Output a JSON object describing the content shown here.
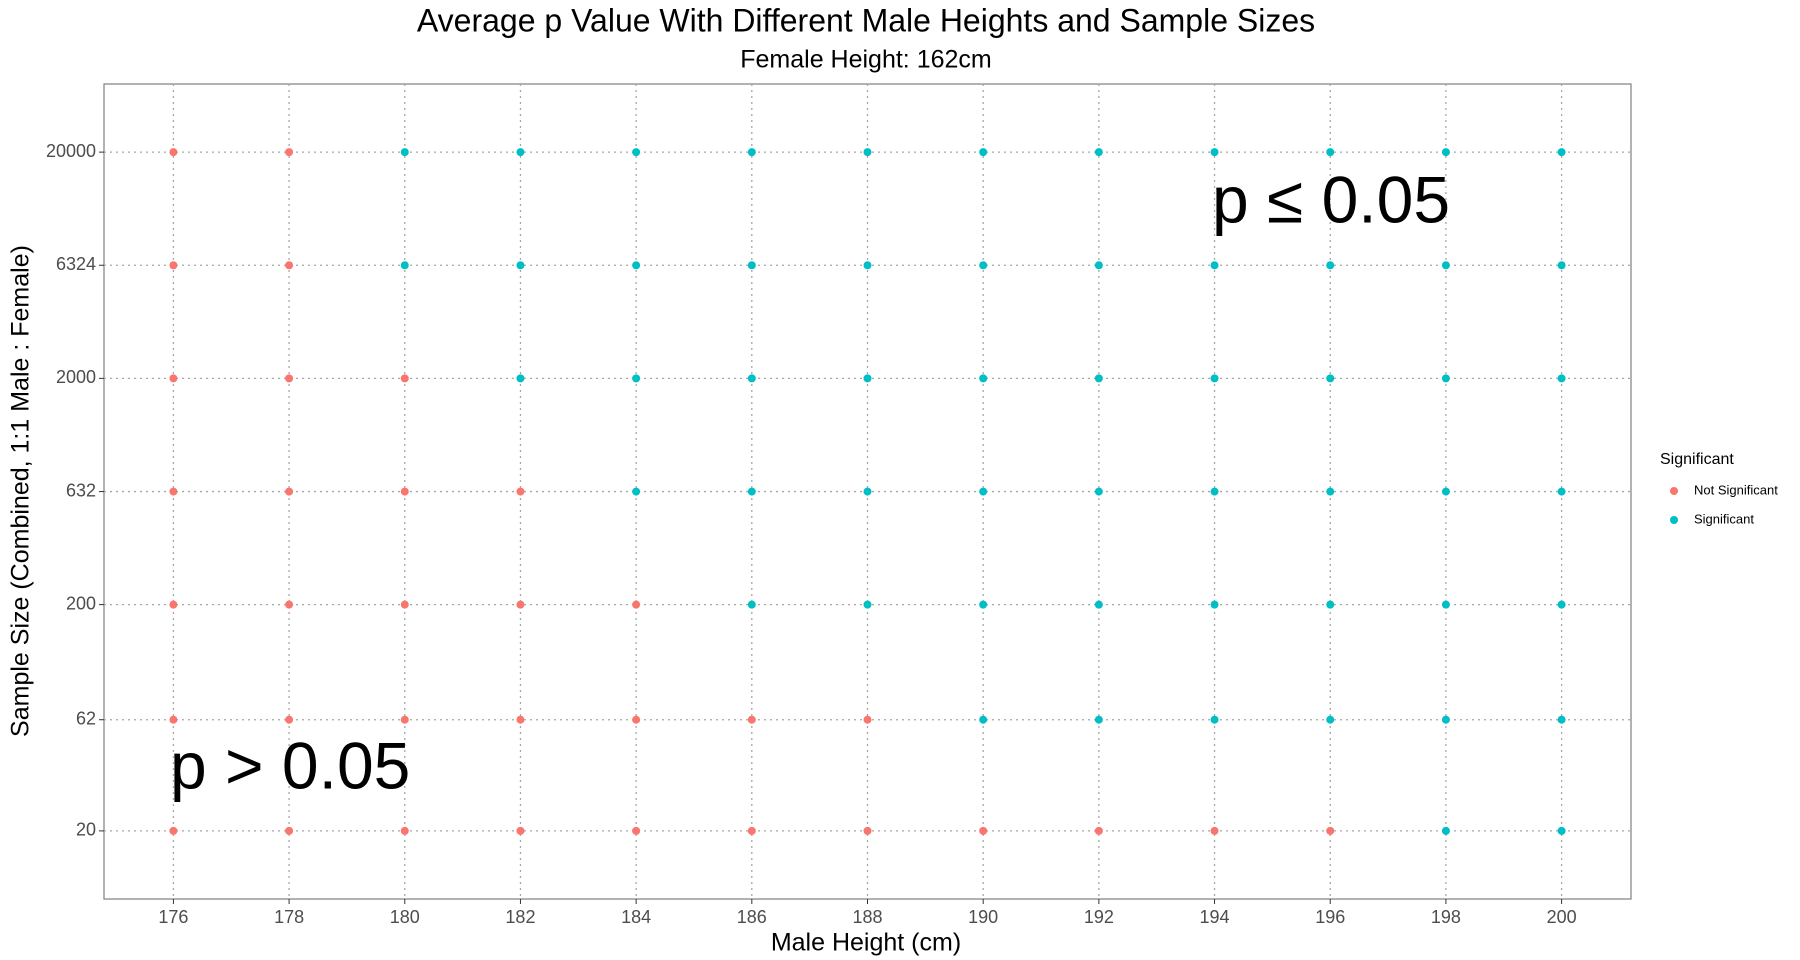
{
  "chart_data": {
    "type": "scatter",
    "title": "Average p Value With Different Male Heights and Sample Sizes",
    "subtitle": "Female Height: 162cm",
    "x_label": "Male Height (cm)",
    "y_label": "Sample Size (Combined, 1:1 Male : Female)",
    "legend_title": "Significant",
    "legend_position": "right",
    "annotations": [
      "p ≤ 0.05",
      "p > 0.05"
    ],
    "xlim": [
      174.8,
      201.2
    ],
    "xticks": [
      176,
      178,
      180,
      182,
      184,
      186,
      188,
      190,
      192,
      194,
      196,
      198,
      200
    ],
    "ylim": [
      10,
      40000
    ],
    "yticks": [
      20,
      62,
      200,
      632,
      2000,
      6324,
      20000
    ],
    "y_scale": "log",
    "grid": true,
    "series": [
      {
        "name": "Not Significant",
        "color": "#F8766D",
        "x": [
          176,
          178,
          176,
          178,
          176,
          178,
          180,
          176,
          178,
          180,
          182,
          176,
          178,
          180,
          182,
          184,
          176,
          178,
          180,
          182,
          184,
          186,
          188,
          176,
          178,
          180,
          182,
          184,
          186,
          188,
          190,
          192,
          194,
          196
        ],
        "y": [
          20000,
          20000,
          6324,
          6324,
          2000,
          2000,
          2000,
          632,
          632,
          632,
          632,
          200,
          200,
          200,
          200,
          200,
          62,
          62,
          62,
          62,
          62,
          62,
          62,
          20,
          20,
          20,
          20,
          20,
          20,
          20,
          20,
          20,
          20,
          20
        ]
      },
      {
        "name": "Significant",
        "color": "#00BFC4",
        "x": [
          180,
          182,
          184,
          186,
          188,
          190,
          192,
          194,
          196,
          198,
          200,
          180,
          182,
          184,
          186,
          188,
          190,
          192,
          194,
          196,
          198,
          200,
          182,
          184,
          186,
          188,
          190,
          192,
          194,
          196,
          198,
          200,
          184,
          186,
          188,
          190,
          192,
          194,
          196,
          198,
          200,
          186,
          188,
          190,
          192,
          194,
          196,
          198,
          200,
          190,
          192,
          194,
          196,
          198,
          200,
          198,
          200
        ],
        "y": [
          20000,
          20000,
          20000,
          20000,
          20000,
          20000,
          20000,
          20000,
          20000,
          20000,
          20000,
          6324,
          6324,
          6324,
          6324,
          6324,
          6324,
          6324,
          6324,
          6324,
          6324,
          6324,
          2000,
          2000,
          2000,
          2000,
          2000,
          2000,
          2000,
          2000,
          2000,
          2000,
          632,
          632,
          632,
          632,
          632,
          632,
          632,
          632,
          632,
          200,
          200,
          200,
          200,
          200,
          200,
          200,
          200,
          62,
          62,
          62,
          62,
          62,
          62,
          20,
          20
        ]
      }
    ]
  }
}
